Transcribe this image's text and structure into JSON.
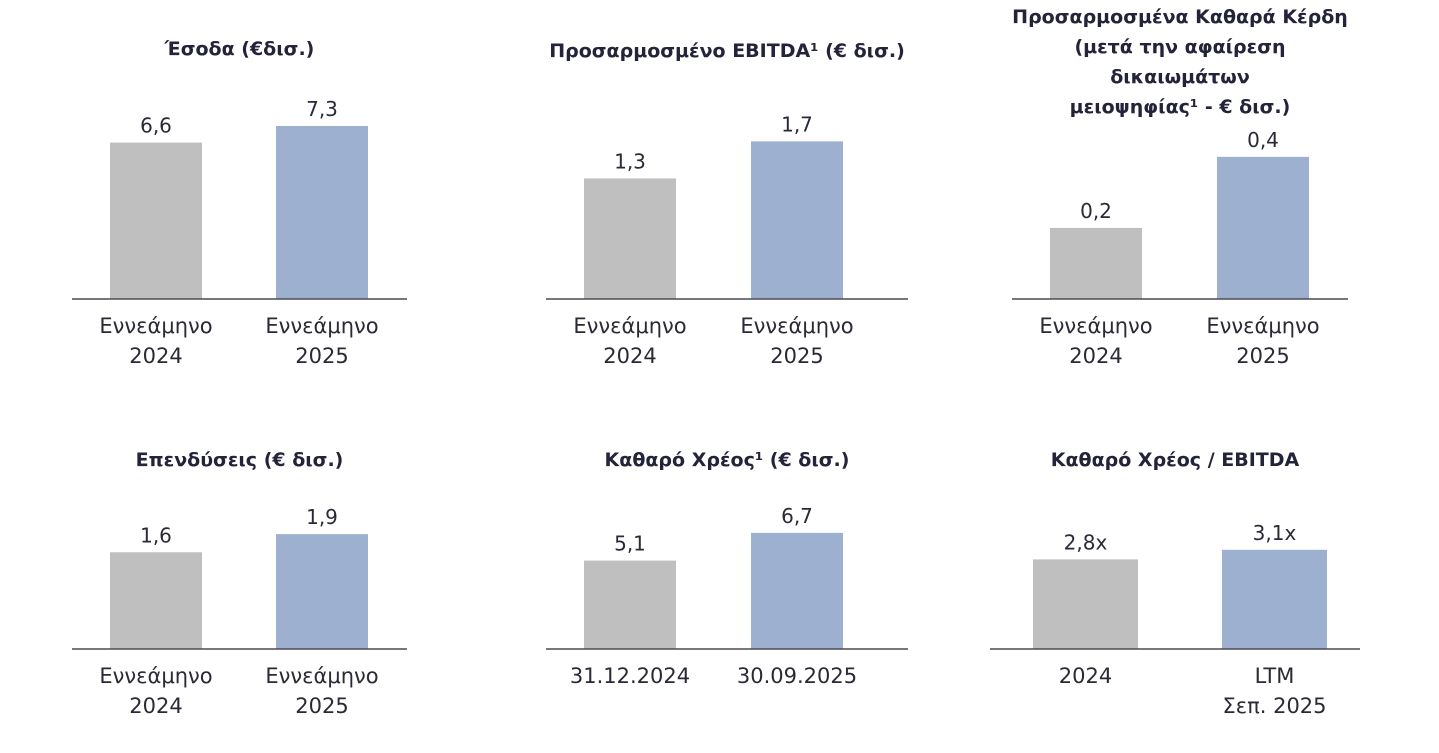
{
  "colors": {
    "prior": "#bfbfbf",
    "current": "#9db0cf",
    "axis": "#4a4a52"
  },
  "chart_data": [
    {
      "type": "bar",
      "title": [
        "Έσοδα (€δισ.)"
      ],
      "categories": [
        [
          "Εννεάμηνο",
          "2024"
        ],
        [
          "Εννεάμηνο",
          "2025"
        ]
      ],
      "values": [
        6.6,
        7.3
      ],
      "value_labels": [
        "6,6",
        "7,3"
      ],
      "ylim": [
        0,
        7.3
      ]
    },
    {
      "type": "bar",
      "title": [
        "Προσαρμοσμένο EBITDA¹ (€ δισ.)"
      ],
      "categories": [
        [
          "Εννεάμηνο",
          "2024"
        ],
        [
          "Εννεάμηνο",
          "2025"
        ]
      ],
      "values": [
        1.3,
        1.7
      ],
      "value_labels": [
        "1,3",
        "1,7"
      ],
      "ylim": [
        0,
        2.2
      ]
    },
    {
      "type": "bar",
      "title": [
        "Προσαρμοσμένα Καθαρά Κέρδη",
        "(μετά την αφαίρεση δικαιωμάτων",
        "μειοψηφίας¹ - € δισ.)"
      ],
      "categories": [
        [
          "Εννεάμηνο",
          "2024"
        ],
        [
          "Εννεάμηνο",
          "2025"
        ]
      ],
      "values": [
        0.2,
        0.4
      ],
      "value_labels": [
        "0,2",
        "0,4"
      ],
      "ylim": [
        0,
        0.56
      ]
    },
    {
      "type": "bar",
      "title": [
        "Επενδύσεις (€ δισ.)"
      ],
      "categories": [
        [
          "Εννεάμηνο",
          "2024"
        ],
        [
          "Εννεάμηνο",
          "2025"
        ]
      ],
      "values": [
        1.6,
        1.9
      ],
      "value_labels": [
        "1,6",
        "1,9"
      ],
      "ylim": [
        0,
        2.15
      ]
    },
    {
      "type": "bar",
      "title": [
        "Καθαρό Χρέος¹ (€ δισ.)"
      ],
      "categories": [
        [
          "31.12.2024"
        ],
        [
          "30.09.2025"
        ]
      ],
      "values": [
        5.1,
        6.7
      ],
      "value_labels": [
        "5,1",
        "6,7"
      ],
      "ylim": [
        0,
        7.5
      ]
    },
    {
      "type": "bar",
      "title": [
        "Καθαρό Χρέος / EBITDA"
      ],
      "categories": [
        [
          "2024"
        ],
        [
          "LTM",
          "Σεπ. 2025"
        ]
      ],
      "values": [
        2.8,
        3.1
      ],
      "value_labels": [
        "2,8x",
        "3,1x"
      ],
      "ylim": [
        0,
        3.5
      ]
    }
  ]
}
